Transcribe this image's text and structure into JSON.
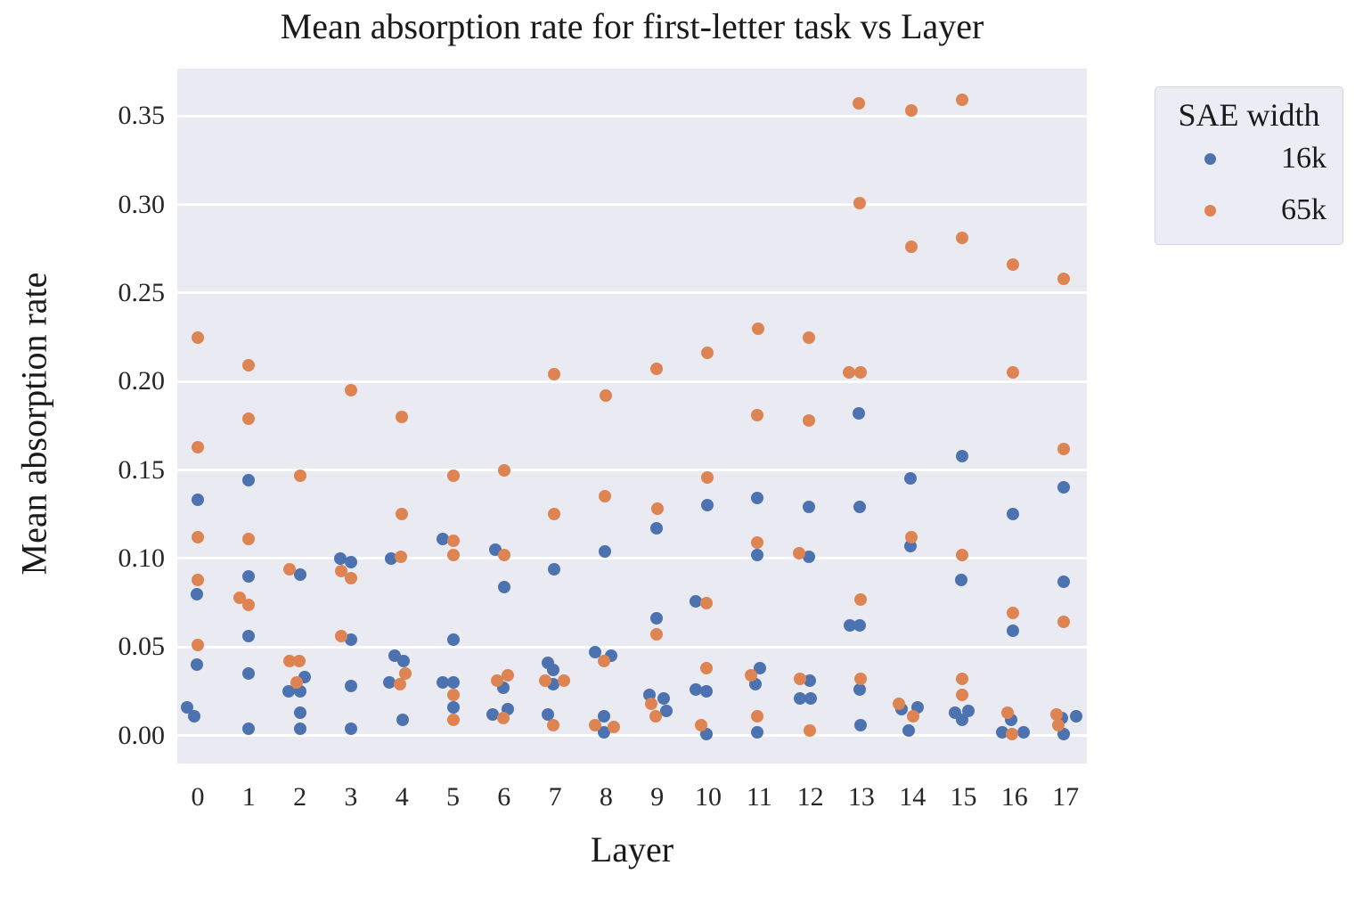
{
  "style": {
    "plot_bg": "#eaeaf2",
    "grid_color": "#ffffff",
    "text_color": "#1a1a1a",
    "tick_color": "#262626",
    "blue": "#4c72b0",
    "orange": "#dd8452"
  },
  "chart_data": {
    "type": "scatter",
    "title": "Mean absorption rate for first-letter task vs Layer",
    "xlabel": "Layer",
    "ylabel": "Mean absorption rate",
    "x_tick_labels": [
      "0",
      "1",
      "2",
      "3",
      "4",
      "5",
      "6",
      "7",
      "8",
      "9",
      "10",
      "11",
      "12",
      "13",
      "14",
      "15",
      "16",
      "17"
    ],
    "y_tick_labels": [
      "0.00",
      "0.05",
      "0.10",
      "0.15",
      "0.20",
      "0.25",
      "0.30",
      "0.35"
    ],
    "y_tick_values": [
      0.0,
      0.05,
      0.1,
      0.15,
      0.2,
      0.25,
      0.3,
      0.35
    ],
    "ylim": [
      -0.016,
      0.377
    ],
    "grid": "horizontal",
    "legend": {
      "title": "SAE width",
      "position": "outside-upper-right",
      "entries": [
        {
          "label": "16k",
          "color": "#4c72b0"
        },
        {
          "label": "65k",
          "color": "#dd8452"
        }
      ]
    },
    "series": [
      {
        "name": "16k",
        "color": "#4c72b0",
        "points": [
          [
            0,
            0.133,
            0
          ],
          [
            0,
            0.08,
            -1
          ],
          [
            0,
            0.04,
            -1
          ],
          [
            0,
            0.016,
            -12
          ],
          [
            0,
            0.011,
            -4
          ],
          [
            1,
            0.144,
            0
          ],
          [
            1,
            0.09,
            0
          ],
          [
            1,
            0.056,
            0
          ],
          [
            1,
            0.035,
            0
          ],
          [
            1,
            0.004,
            0
          ],
          [
            2,
            0.091,
            0
          ],
          [
            2,
            0.033,
            5
          ],
          [
            2,
            0.025,
            -13
          ],
          [
            2,
            0.025,
            0
          ],
          [
            2,
            0.013,
            0
          ],
          [
            2,
            0.004,
            0
          ],
          [
            3,
            0.1,
            -12
          ],
          [
            3,
            0.098,
            0
          ],
          [
            3,
            0.054,
            0
          ],
          [
            3,
            0.028,
            0
          ],
          [
            3,
            0.004,
            0
          ],
          [
            4,
            0.1,
            -12
          ],
          [
            4,
            0.045,
            -8
          ],
          [
            4,
            0.042,
            2
          ],
          [
            4,
            0.03,
            -14
          ],
          [
            4,
            0.009,
            1
          ],
          [
            5,
            0.111,
            -12
          ],
          [
            5,
            0.054,
            0
          ],
          [
            5,
            0.03,
            -12
          ],
          [
            5,
            0.03,
            0
          ],
          [
            5,
            0.016,
            0
          ],
          [
            6,
            0.105,
            -10
          ],
          [
            6,
            0.084,
            0
          ],
          [
            6,
            0.027,
            -1
          ],
          [
            6,
            0.015,
            4
          ],
          [
            6,
            0.012,
            -13
          ],
          [
            7,
            0.094,
            -1
          ],
          [
            7,
            0.041,
            -8
          ],
          [
            7,
            0.037,
            -2
          ],
          [
            7,
            0.029,
            -2
          ],
          [
            7,
            0.012,
            -8
          ],
          [
            8,
            0.104,
            -1
          ],
          [
            8,
            0.047,
            -12
          ],
          [
            8,
            0.045,
            6
          ],
          [
            8,
            0.011,
            -2
          ],
          [
            8,
            0.002,
            -2
          ],
          [
            9,
            0.117,
            -1
          ],
          [
            9,
            0.066,
            -1
          ],
          [
            9,
            0.023,
            -9
          ],
          [
            9,
            0.021,
            7
          ],
          [
            9,
            0.014,
            10
          ],
          [
            10,
            0.13,
            -1
          ],
          [
            10,
            0.076,
            -14
          ],
          [
            10,
            0.026,
            -14
          ],
          [
            10,
            0.025,
            -2
          ],
          [
            10,
            0.001,
            -2
          ],
          [
            11,
            0.134,
            -2
          ],
          [
            11,
            0.102,
            -2
          ],
          [
            11,
            0.038,
            1
          ],
          [
            11,
            0.029,
            -4
          ],
          [
            11,
            0.002,
            -2
          ],
          [
            12,
            0.129,
            -2
          ],
          [
            12,
            0.101,
            -2
          ],
          [
            12,
            0.031,
            -1
          ],
          [
            12,
            0.021,
            -12
          ],
          [
            12,
            0.021,
            0
          ],
          [
            13,
            0.182,
            -3
          ],
          [
            13,
            0.129,
            -2
          ],
          [
            13,
            0.062,
            -13
          ],
          [
            13,
            0.062,
            -2
          ],
          [
            13,
            0.026,
            -2
          ],
          [
            13,
            0.006,
            -1
          ],
          [
            14,
            0.145,
            -2
          ],
          [
            14,
            0.107,
            -2
          ],
          [
            14,
            0.016,
            6
          ],
          [
            14,
            0.015,
            -12
          ],
          [
            14,
            0.003,
            -4
          ],
          [
            15,
            0.158,
            -2
          ],
          [
            15,
            0.088,
            -3
          ],
          [
            15,
            0.014,
            5
          ],
          [
            15,
            0.013,
            -10
          ],
          [
            15,
            0.009,
            -2
          ],
          [
            16,
            0.125,
            -2
          ],
          [
            16,
            0.059,
            -2
          ],
          [
            16,
            0.009,
            -4
          ],
          [
            16,
            0.002,
            -14
          ],
          [
            16,
            0.002,
            10
          ],
          [
            17,
            0.14,
            -2
          ],
          [
            17,
            0.087,
            -2
          ],
          [
            17,
            0.011,
            12
          ],
          [
            17,
            0.01,
            -4
          ],
          [
            17,
            0.001,
            -2
          ]
        ]
      },
      {
        "name": "65k",
        "color": "#dd8452",
        "points": [
          [
            0,
            0.225,
            0
          ],
          [
            0,
            0.163,
            0
          ],
          [
            0,
            0.112,
            0
          ],
          [
            0,
            0.088,
            0
          ],
          [
            0,
            0.051,
            0
          ],
          [
            1,
            0.209,
            0
          ],
          [
            1,
            0.179,
            0
          ],
          [
            1,
            0.111,
            0
          ],
          [
            1,
            0.078,
            -10
          ],
          [
            1,
            0.074,
            0
          ],
          [
            2,
            0.147,
            0
          ],
          [
            2,
            0.094,
            -12
          ],
          [
            2,
            0.042,
            -12
          ],
          [
            2,
            0.042,
            -1
          ],
          [
            2,
            0.03,
            -4
          ],
          [
            3,
            0.195,
            0
          ],
          [
            3,
            0.093,
            -11
          ],
          [
            3,
            0.089,
            0
          ],
          [
            3,
            0.056,
            -11
          ],
          [
            4,
            0.18,
            0
          ],
          [
            4,
            0.125,
            0
          ],
          [
            4,
            0.101,
            -1
          ],
          [
            4,
            0.035,
            4
          ],
          [
            4,
            0.029,
            -2
          ],
          [
            5,
            0.147,
            0
          ],
          [
            5,
            0.11,
            0
          ],
          [
            5,
            0.102,
            0
          ],
          [
            5,
            0.023,
            0
          ],
          [
            5,
            0.009,
            0
          ],
          [
            6,
            0.15,
            0
          ],
          [
            6,
            0.102,
            0
          ],
          [
            6,
            0.034,
            4
          ],
          [
            6,
            0.031,
            -8
          ],
          [
            6,
            0.01,
            -1
          ],
          [
            7,
            0.204,
            -1
          ],
          [
            7,
            0.125,
            -1
          ],
          [
            7,
            0.031,
            -11
          ],
          [
            7,
            0.031,
            10
          ],
          [
            7,
            0.006,
            -2
          ],
          [
            8,
            0.192,
            0
          ],
          [
            8,
            0.135,
            -1
          ],
          [
            8,
            0.042,
            -2
          ],
          [
            8,
            0.006,
            -12
          ],
          [
            8,
            0.005,
            9
          ],
          [
            9,
            0.207,
            -1
          ],
          [
            9,
            0.128,
            0
          ],
          [
            9,
            0.057,
            -1
          ],
          [
            9,
            0.018,
            -7
          ],
          [
            9,
            0.011,
            -2
          ],
          [
            10,
            0.216,
            -1
          ],
          [
            10,
            0.146,
            -1
          ],
          [
            10,
            0.075,
            -2
          ],
          [
            10,
            0.038,
            -2
          ],
          [
            10,
            0.006,
            -8
          ],
          [
            11,
            0.23,
            -1
          ],
          [
            11,
            0.181,
            -2
          ],
          [
            11,
            0.109,
            -2
          ],
          [
            11,
            0.034,
            -9
          ],
          [
            11,
            0.011,
            -2
          ],
          [
            12,
            0.225,
            -2
          ],
          [
            12,
            0.178,
            -2
          ],
          [
            12,
            0.103,
            -13
          ],
          [
            12,
            0.032,
            -12
          ],
          [
            12,
            0.003,
            -1
          ],
          [
            13,
            0.357,
            -3
          ],
          [
            13,
            0.301,
            -2
          ],
          [
            13,
            0.205,
            -14
          ],
          [
            13,
            0.205,
            -1
          ],
          [
            13,
            0.077,
            -1
          ],
          [
            13,
            0.032,
            -1
          ],
          [
            14,
            0.353,
            -1
          ],
          [
            14,
            0.276,
            -1
          ],
          [
            14,
            0.112,
            -1
          ],
          [
            14,
            0.018,
            -15
          ],
          [
            14,
            0.011,
            1
          ],
          [
            15,
            0.359,
            -2
          ],
          [
            15,
            0.281,
            -2
          ],
          [
            15,
            0.102,
            -2
          ],
          [
            15,
            0.032,
            -2
          ],
          [
            15,
            0.023,
            -2
          ],
          [
            16,
            0.266,
            -2
          ],
          [
            16,
            0.205,
            -2
          ],
          [
            16,
            0.069,
            -2
          ],
          [
            16,
            0.013,
            -8
          ],
          [
            16,
            0.001,
            -3
          ],
          [
            17,
            0.258,
            -2
          ],
          [
            17,
            0.162,
            -2
          ],
          [
            17,
            0.064,
            -2
          ],
          [
            17,
            0.012,
            -10
          ],
          [
            17,
            0.006,
            -8
          ]
        ]
      }
    ]
  }
}
